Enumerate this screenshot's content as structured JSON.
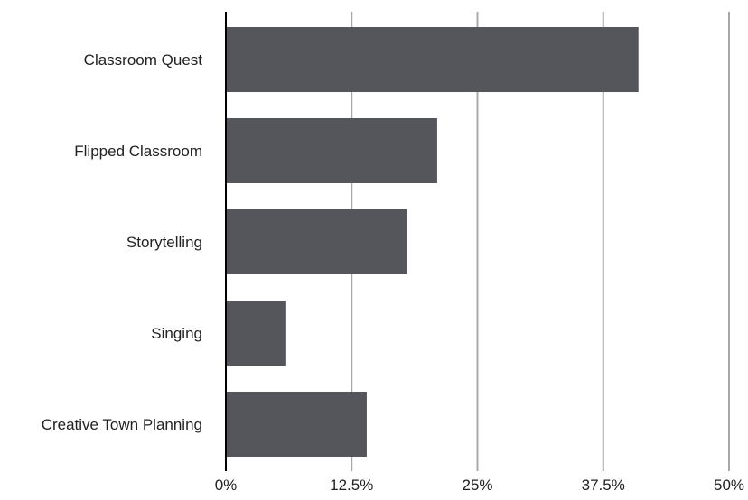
{
  "chart_data": {
    "type": "bar",
    "orientation": "horizontal",
    "categories": [
      "Classroom Quest",
      "Flipped Classroom",
      "Storytelling",
      "Singing",
      "Creative Town Planning"
    ],
    "values": [
      41,
      21,
      18,
      6,
      14
    ],
    "value_unit": "%",
    "xlim": [
      0,
      50
    ],
    "xticks": [
      0,
      12.5,
      25,
      37.5,
      50
    ],
    "xtick_labels": [
      "0%",
      "12.5%",
      "25%",
      "37.5%",
      "50%"
    ],
    "title": "",
    "xlabel": "",
    "ylabel": "",
    "grid": "vertical",
    "bar_color": "#54565c",
    "grid_color": "#a9a9a9",
    "axis_color": "#000000",
    "text_color": "#222222"
  }
}
